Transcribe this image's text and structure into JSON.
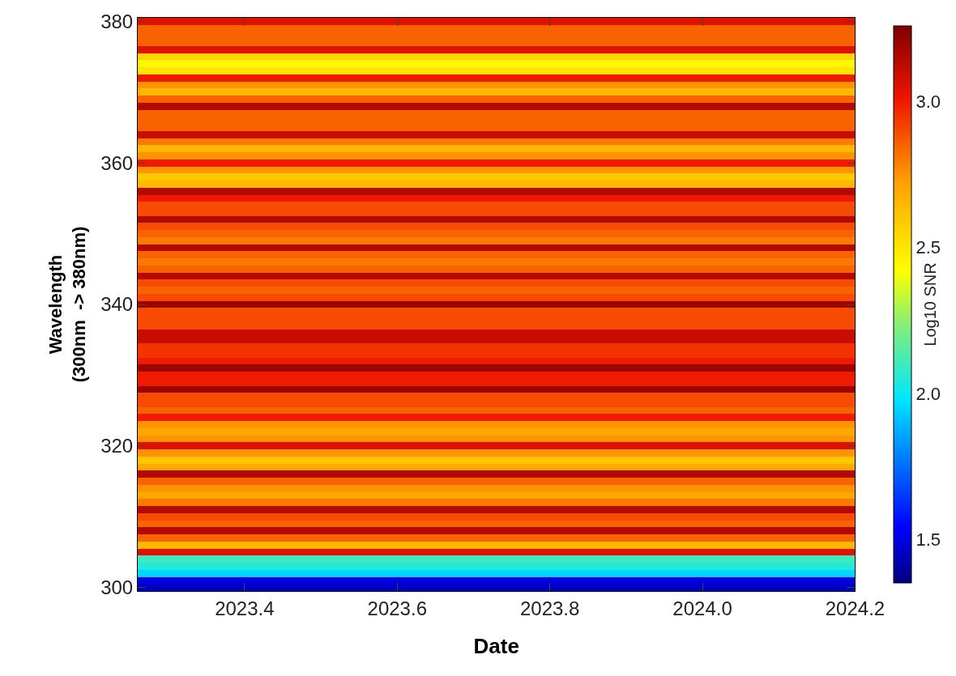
{
  "chart_data": {
    "type": "heatmap",
    "xlabel": "Date",
    "ylabel": "Wavelength\n(300nm  -> 380nm)",
    "clabel": "Log10 SNR",
    "x": [
      2023.35,
      2023.6,
      2023.85,
      2024.1
    ],
    "y_categories": [
      "380",
      null,
      null,
      null,
      null,
      null,
      null,
      null,
      null,
      null,
      null,
      null,
      null,
      null,
      null,
      null,
      null,
      null,
      null,
      null,
      "360",
      null,
      null,
      null,
      null,
      null,
      null,
      null,
      null,
      null,
      null,
      null,
      null,
      null,
      null,
      null,
      null,
      null,
      null,
      null,
      "340",
      null,
      null,
      null,
      null,
      null,
      null,
      null,
      null,
      null,
      null,
      null,
      null,
      null,
      null,
      null,
      null,
      null,
      null,
      null,
      "320",
      null,
      null,
      null,
      null,
      null,
      null,
      null,
      null,
      null,
      null,
      null,
      null,
      null,
      null,
      null,
      null,
      null,
      null,
      null,
      "300"
    ],
    "cells": [
      [
        3.05,
        3.05,
        3.05,
        3.05
      ],
      [
        2.85,
        2.85,
        2.85,
        2.85
      ],
      [
        2.85,
        2.85,
        2.85,
        2.85
      ],
      [
        2.85,
        2.85,
        2.85,
        2.85
      ],
      [
        3.05,
        3.05,
        3.05,
        3.05
      ],
      [
        2.55,
        2.55,
        2.55,
        2.55
      ],
      [
        2.45,
        2.45,
        2.45,
        2.45
      ],
      [
        2.5,
        2.5,
        2.5,
        2.5
      ],
      [
        3.0,
        3.0,
        3.0,
        3.0
      ],
      [
        2.75,
        2.75,
        2.75,
        2.75
      ],
      [
        2.65,
        2.65,
        2.65,
        2.65
      ],
      [
        2.85,
        2.85,
        2.85,
        2.85
      ],
      [
        3.15,
        3.15,
        3.15,
        3.15
      ],
      [
        2.85,
        2.85,
        2.85,
        2.85
      ],
      [
        2.85,
        2.85,
        2.85,
        2.85
      ],
      [
        2.85,
        2.85,
        2.85,
        2.85
      ],
      [
        3.1,
        3.1,
        3.1,
        3.1
      ],
      [
        2.8,
        2.8,
        2.8,
        2.8
      ],
      [
        2.65,
        2.65,
        2.65,
        2.65
      ],
      [
        2.75,
        2.75,
        2.75,
        2.75
      ],
      [
        3.0,
        3.0,
        3.0,
        3.0
      ],
      [
        2.75,
        2.75,
        2.75,
        2.75
      ],
      [
        2.6,
        2.6,
        2.6,
        2.6
      ],
      [
        2.65,
        2.65,
        2.65,
        2.65
      ],
      [
        3.15,
        3.15,
        3.15,
        3.15
      ],
      [
        3.0,
        3.0,
        3.0,
        3.0
      ],
      [
        2.9,
        2.9,
        2.9,
        2.9
      ],
      [
        2.9,
        2.9,
        2.9,
        2.9
      ],
      [
        3.15,
        3.15,
        3.15,
        3.15
      ],
      [
        2.9,
        2.9,
        2.9,
        2.9
      ],
      [
        2.85,
        2.85,
        2.85,
        2.85
      ],
      [
        2.8,
        2.8,
        2.8,
        2.8
      ],
      [
        3.15,
        3.15,
        3.15,
        3.15
      ],
      [
        2.85,
        2.85,
        2.85,
        2.85
      ],
      [
        2.8,
        2.8,
        2.8,
        2.8
      ],
      [
        2.85,
        2.85,
        2.85,
        2.85
      ],
      [
        3.15,
        3.15,
        3.15,
        3.15
      ],
      [
        2.9,
        2.9,
        2.9,
        2.9
      ],
      [
        2.85,
        2.85,
        2.85,
        2.85
      ],
      [
        2.9,
        2.9,
        2.9,
        2.9
      ],
      [
        3.2,
        3.2,
        3.2,
        3.2
      ],
      [
        2.9,
        2.9,
        2.9,
        2.9
      ],
      [
        2.9,
        2.9,
        2.9,
        2.9
      ],
      [
        2.9,
        2.9,
        2.9,
        2.9
      ],
      [
        3.1,
        3.1,
        3.1,
        3.1
      ],
      [
        3.1,
        3.1,
        3.1,
        3.1
      ],
      [
        2.95,
        2.95,
        2.95,
        2.95
      ],
      [
        2.95,
        2.95,
        2.95,
        2.95
      ],
      [
        3.0,
        3.0,
        3.0,
        3.0
      ],
      [
        3.2,
        3.2,
        3.2,
        3.2
      ],
      [
        3.0,
        3.0,
        3.0,
        3.0
      ],
      [
        3.0,
        3.0,
        3.0,
        3.0
      ],
      [
        3.2,
        3.2,
        3.2,
        3.2
      ],
      [
        2.9,
        2.9,
        2.9,
        2.9
      ],
      [
        2.9,
        2.9,
        2.9,
        2.9
      ],
      [
        2.85,
        2.85,
        2.85,
        2.85
      ],
      [
        3.0,
        3.0,
        3.0,
        3.0
      ],
      [
        2.75,
        2.75,
        2.75,
        2.75
      ],
      [
        2.7,
        2.7,
        2.7,
        2.7
      ],
      [
        2.75,
        2.75,
        2.75,
        2.75
      ],
      [
        3.05,
        3.05,
        3.05,
        3.05
      ],
      [
        2.75,
        2.75,
        2.75,
        2.75
      ],
      [
        2.6,
        2.6,
        2.6,
        2.6
      ],
      [
        2.7,
        2.7,
        2.7,
        2.7
      ],
      [
        3.15,
        3.15,
        3.15,
        3.15
      ],
      [
        2.85,
        2.85,
        2.85,
        2.85
      ],
      [
        2.75,
        2.75,
        2.75,
        2.75
      ],
      [
        2.7,
        2.7,
        2.7,
        2.7
      ],
      [
        2.8,
        2.8,
        2.8,
        2.8
      ],
      [
        3.15,
        3.15,
        3.15,
        3.15
      ],
      [
        2.9,
        2.9,
        2.9,
        2.9
      ],
      [
        2.85,
        2.85,
        2.85,
        2.85
      ],
      [
        3.15,
        3.15,
        3.15,
        3.15
      ],
      [
        2.85,
        2.85,
        2.85,
        2.85
      ],
      [
        2.65,
        2.65,
        2.65,
        2.65
      ],
      [
        3.05,
        3.05,
        3.05,
        3.05
      ],
      [
        2.1,
        2.1,
        2.1,
        2.1
      ],
      [
        2.05,
        2.05,
        2.05,
        2.05
      ],
      [
        1.95,
        1.95,
        1.95,
        1.95
      ],
      [
        1.5,
        1.5,
        1.5,
        1.5
      ],
      [
        1.45,
        1.45,
        1.45,
        1.45
      ]
    ],
    "xlim": [
      2023.26,
      2024.2
    ],
    "xticks": [
      2023.4,
      2023.6,
      2023.8,
      {
        "value": 2024,
        "label": "2024.0"
      },
      2024.2
    ],
    "clim": [
      1.35,
      3.26
    ],
    "cticks": [
      1.5,
      {
        "value": 2,
        "label": "2.0"
      },
      2.5,
      {
        "value": 3,
        "label": "3.0"
      }
    ]
  }
}
